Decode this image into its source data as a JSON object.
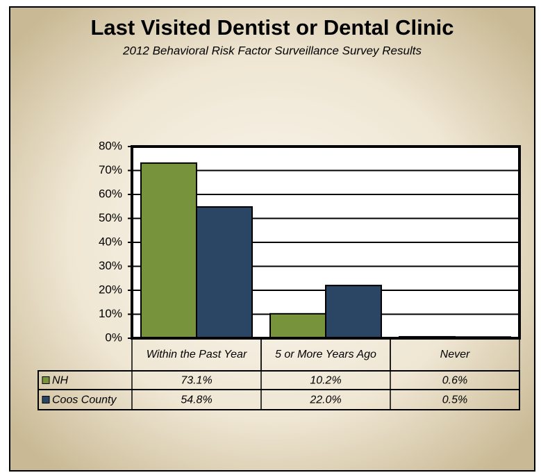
{
  "chart_data": {
    "type": "bar",
    "title": "Last Visited Dentist or Dental Clinic",
    "subtitle": "2012 Behavioral Risk Factor Surveillance Survey Results",
    "categories": [
      "Within the Past Year",
      "5 or More Years Ago",
      "Never"
    ],
    "series": [
      {
        "name": "NH",
        "color": "#77933c",
        "values": [
          73.1,
          10.2,
          0.6
        ],
        "value_labels": [
          "73.1%",
          "10.2%",
          "0.6%"
        ]
      },
      {
        "name": "Coos County",
        "color": "#2b4565",
        "values": [
          54.8,
          22.0,
          0.5
        ],
        "value_labels": [
          "54.8%",
          "22.0%",
          "0.5%"
        ]
      }
    ],
    "ylim": [
      0,
      80
    ],
    "yticks": [
      {
        "value": 0,
        "label": "0%"
      },
      {
        "value": 10,
        "label": "10%"
      },
      {
        "value": 20,
        "label": "20%"
      },
      {
        "value": 30,
        "label": "30%"
      },
      {
        "value": 40,
        "label": "40%"
      },
      {
        "value": 50,
        "label": "50%"
      },
      {
        "value": 60,
        "label": "60%"
      },
      {
        "value": 70,
        "label": "70%"
      },
      {
        "value": 80,
        "label": "80%"
      }
    ],
    "grid": true
  }
}
